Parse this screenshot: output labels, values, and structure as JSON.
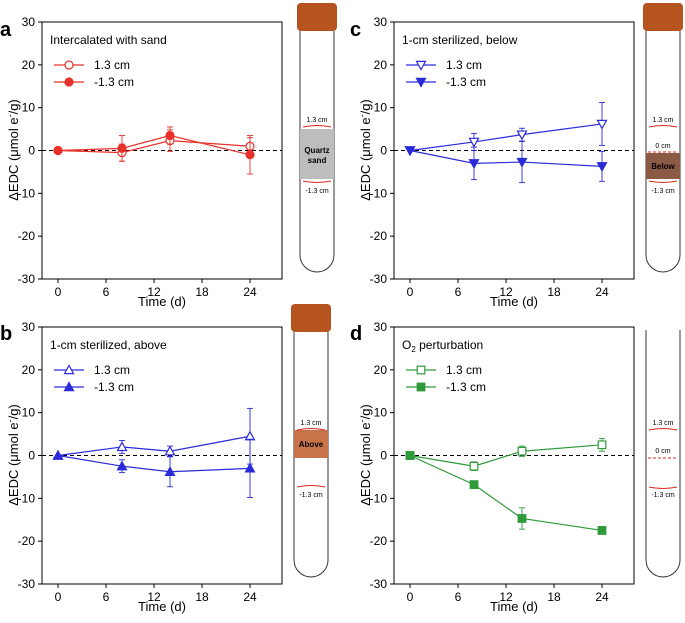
{
  "figure": {
    "y_unit_main": "μmol e",
    "y_unit_sup": "-",
    "y_unit_tail": "/g"
  },
  "tubes": [
    {
      "panel": "a",
      "cap": true,
      "top_label": "1.3 cm",
      "bottom_label": "-1.3 cm",
      "zero_label": "",
      "band_label_1": "Quartz",
      "band_label_2": "sand",
      "band_color": "#bdbdbd"
    },
    {
      "panel": "c",
      "cap": true,
      "top_label": "1.3 cm",
      "bottom_label": "-1.3 cm",
      "zero_label": "0 cm",
      "band_label_1": "Below",
      "band_label_2": "",
      "band_color": "#8a5a44"
    },
    {
      "panel": "b",
      "cap": true,
      "top_label": "1.3 cm",
      "bottom_label": "-1.3 cm",
      "zero_label": "",
      "band_label_1": "Above",
      "band_label_2": "",
      "band_color": "#c9734a"
    },
    {
      "panel": "d",
      "cap": false,
      "top_label": "1.3 cm",
      "bottom_label": "-1.3 cm",
      "zero_label": "0 cm",
      "band_label_1": "",
      "band_label_2": "",
      "band_color": ""
    }
  ],
  "chart_data": [
    {
      "panel": "a",
      "type": "line",
      "title": "Intercalated with sand",
      "xlabel": "Time (d)",
      "ylabel": "ΔEDC",
      "xlim": [
        -2,
        28
      ],
      "ylim": [
        -30,
        30
      ],
      "xticks": [
        0,
        6,
        12,
        18,
        24
      ],
      "yticks": [
        -30,
        -20,
        -10,
        0,
        10,
        20,
        30
      ],
      "color": "#e8312a",
      "series": [
        {
          "name": "1.3 cm",
          "marker": "circle-open",
          "x": [
            0,
            8,
            14,
            24
          ],
          "y": [
            0,
            -0.5,
            2.3,
            1.0
          ],
          "err": [
            0,
            2.0,
            2.5,
            2.0
          ]
        },
        {
          "name": "-1.3 cm",
          "marker": "circle-filled",
          "x": [
            0,
            8,
            14,
            24
          ],
          "y": [
            0,
            0.5,
            3.5,
            -1.0
          ],
          "err": [
            0,
            3.0,
            2.0,
            4.5
          ]
        }
      ]
    },
    {
      "panel": "c",
      "type": "line",
      "title": "1-cm sterilized, below",
      "xlabel": "Time (d)",
      "ylabel": "ΔEDC",
      "xlim": [
        -2,
        28
      ],
      "ylim": [
        -30,
        30
      ],
      "xticks": [
        0,
        6,
        12,
        18,
        24
      ],
      "yticks": [
        -30,
        -20,
        -10,
        0,
        10,
        20,
        30
      ],
      "color": "#2b2bd9",
      "series": [
        {
          "name": "1.3 cm",
          "marker": "tri-down-open",
          "x": [
            0,
            8,
            14,
            24
          ],
          "y": [
            0,
            2.0,
            3.7,
            6.2
          ],
          "err": [
            0,
            2.0,
            1.5,
            5.0
          ]
        },
        {
          "name": "-1.3 cm",
          "marker": "tri-down-filled",
          "x": [
            0,
            8,
            14,
            24
          ],
          "y": [
            0,
            -3.0,
            -2.7,
            -3.7
          ],
          "err": [
            0,
            3.8,
            4.8,
            3.5
          ]
        }
      ]
    },
    {
      "panel": "b",
      "type": "line",
      "title": "1-cm sterilized, above",
      "xlabel": "Time (d)",
      "ylabel": "ΔEDC",
      "xlim": [
        -2,
        28
      ],
      "ylim": [
        -30,
        30
      ],
      "xticks": [
        0,
        6,
        12,
        18,
        24
      ],
      "yticks": [
        -30,
        -20,
        -10,
        0,
        10,
        20,
        30
      ],
      "color": "#2b2bd9",
      "series": [
        {
          "name": "1.3 cm",
          "marker": "tri-up-open",
          "x": [
            0,
            8,
            14,
            24
          ],
          "y": [
            0,
            2.0,
            1.0,
            4.5
          ],
          "err": [
            0,
            1.5,
            1.2,
            6.5
          ]
        },
        {
          "name": "-1.3 cm",
          "marker": "tri-up-filled",
          "x": [
            0,
            8,
            14,
            24
          ],
          "y": [
            0,
            -2.5,
            -3.8,
            -3.0
          ],
          "err": [
            0,
            1.5,
            3.5,
            6.8
          ]
        }
      ]
    },
    {
      "panel": "d",
      "type": "line",
      "title_main": "O",
      "title_sub": "2",
      "title_rest": " perturbation",
      "xlabel": "Time (d)",
      "ylabel": "ΔEDC",
      "xlim": [
        -2,
        28
      ],
      "ylim": [
        -30,
        30
      ],
      "xticks": [
        0,
        6,
        12,
        18,
        24
      ],
      "yticks": [
        -30,
        -20,
        -10,
        0,
        10,
        20,
        30
      ],
      "color": "#2e9a3a",
      "series": [
        {
          "name": "1.3 cm",
          "marker": "square-open",
          "x": [
            0,
            8,
            14,
            24
          ],
          "y": [
            0,
            -2.5,
            1.0,
            2.5
          ],
          "err": [
            0,
            1.0,
            1.2,
            1.5
          ]
        },
        {
          "name": "-1.3 cm",
          "marker": "square-filled",
          "x": [
            0,
            8,
            14,
            24
          ],
          "y": [
            0,
            -6.8,
            -14.7,
            -17.5
          ],
          "err": [
            0,
            0.8,
            2.5,
            0.5
          ]
        }
      ]
    }
  ]
}
